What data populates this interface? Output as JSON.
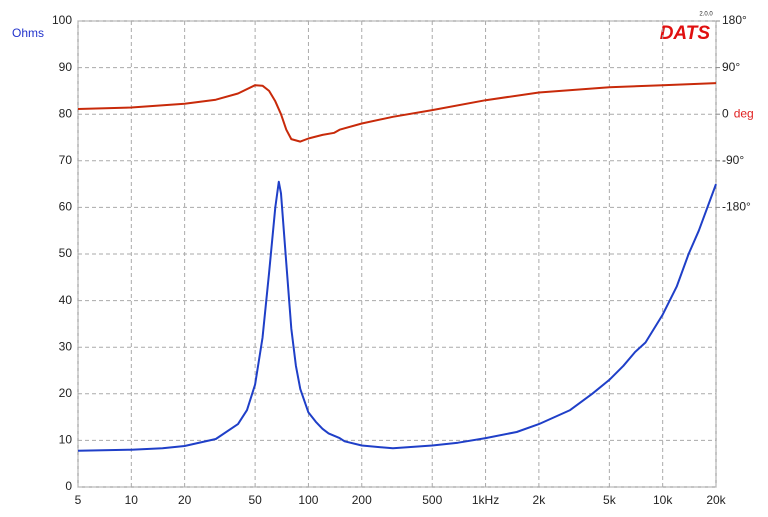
{
  "chart_data": {
    "type": "line",
    "y_label": "Ohms",
    "y2_label": "deg",
    "logo": "DATS",
    "logo_version": "2.0.0",
    "xlog": true,
    "grid": true,
    "xlim": [
      5,
      20000
    ],
    "xticks": [
      5,
      10,
      20,
      50,
      100,
      200,
      500,
      {
        "value": 1000,
        "label": "1kHz"
      },
      {
        "value": 2000,
        "label": "2k"
      },
      {
        "value": 5000,
        "label": "5k"
      },
      {
        "value": 10000,
        "label": "10k"
      },
      {
        "value": 20000,
        "label": "20k"
      }
    ],
    "ylim": [
      0,
      100
    ],
    "yticks": [
      0,
      10,
      20,
      30,
      40,
      50,
      60,
      70,
      80,
      90,
      100
    ],
    "y2lim": [
      -720,
      180
    ],
    "y2ticks": [
      {
        "value": 180,
        "label": "180°"
      },
      {
        "value": 90,
        "label": "90°"
      },
      0,
      {
        "value": -90,
        "label": "-90°"
      },
      {
        "value": -180,
        "label": "-180°"
      }
    ],
    "series": [
      {
        "color": "#1f3fc8",
        "x": [
          5,
          10,
          15,
          20,
          30,
          40,
          45,
          50,
          55,
          60,
          65,
          68,
          70,
          75,
          80,
          85,
          90,
          100,
          110,
          120,
          130,
          150,
          160,
          200,
          300,
          500,
          700,
          1000,
          1500,
          2000,
          3000,
          4000,
          5000,
          6000,
          7000,
          8000,
          10000,
          12000,
          14000,
          16000,
          20000
        ],
        "values": [
          7.8,
          8.0,
          8.3,
          8.8,
          10.3,
          13.5,
          16.5,
          22,
          32,
          46,
          60,
          65.5,
          63,
          48,
          34,
          26,
          21,
          16,
          14,
          12.5,
          11.5,
          10.5,
          9.8,
          8.9,
          8.3,
          8.9,
          9.5,
          10.5,
          11.8,
          13.5,
          16.5,
          20,
          23,
          26,
          29,
          31,
          37,
          43,
          50,
          55,
          65
        ]
      },
      {
        "color": "#c82a0a",
        "axis": "y2",
        "x": [
          5,
          10,
          20,
          30,
          40,
          50,
          55,
          60,
          65,
          70,
          75,
          80,
          90,
          100,
          120,
          140,
          150,
          200,
          300,
          500,
          1000,
          2000,
          5000,
          10000,
          20000
        ],
        "values": [
          10,
          13,
          20,
          28,
          40,
          56,
          55,
          45,
          25,
          0,
          -30,
          -48,
          -53,
          -47,
          -40,
          -36,
          -30,
          -18,
          -5,
          8,
          27,
          42,
          52,
          56,
          60
        ]
      }
    ]
  }
}
